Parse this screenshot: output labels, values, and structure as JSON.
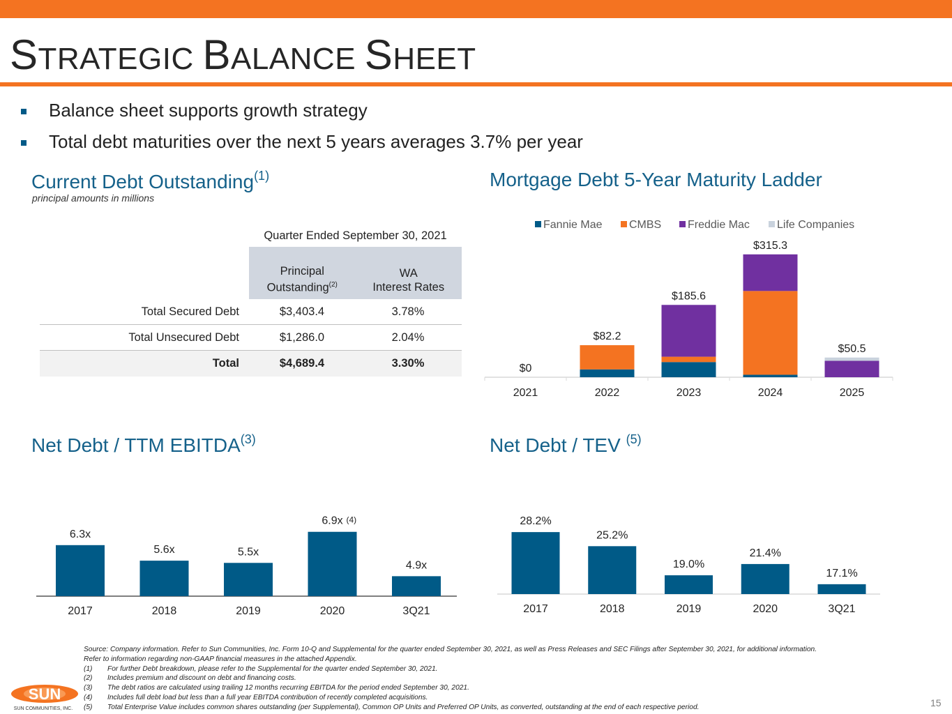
{
  "colors": {
    "orange": "#f47321",
    "navy": "#005a87",
    "purple": "#7030a0",
    "light_gray": "#c9d2dd",
    "title_blue": "#15618a"
  },
  "title": {
    "cap1": "S",
    "rest1": "TRATEGIC ",
    "cap2": "B",
    "rest2": "ALANCE ",
    "cap3": "S",
    "rest3": "HEET"
  },
  "bullets": [
    "Balance sheet supports growth strategy",
    "Total debt maturities over the next 5 years averages 3.7% per year"
  ],
  "debt_table": {
    "title": "Current Debt Outstanding",
    "title_note": "(1)",
    "subtitle": "principal amounts in millions",
    "period_header": "Quarter Ended September 30, 2021",
    "col1_line1": "Principal",
    "col1_line2": "Outstanding",
    "col1_note": "(2)",
    "col2_line1": "WA",
    "col2_line2": "Interest Rates",
    "rows": [
      {
        "label": "Total Secured Debt",
        "principal": "$3,403.4",
        "rate": "3.78%"
      },
      {
        "label": "Total Unsecured Debt",
        "principal": "$1,286.0",
        "rate": "2.04%"
      },
      {
        "label": "Total",
        "principal": "$4,689.4",
        "rate": "3.30%"
      }
    ]
  },
  "ladder_title": "Mortgage Debt 5-Year Maturity Ladder",
  "ebitda_title": "Net Debt / TTM EBITDA",
  "ebitda_title_note": "(3)",
  "tev_title": "Net Debt / TEV",
  "tev_title_note": "(5)",
  "chart_data": [
    {
      "type": "bar",
      "stacked": true,
      "title": "Mortgage Debt 5-Year Maturity Ladder",
      "categories": [
        "2021",
        "2022",
        "2023",
        "2024",
        "2025"
      ],
      "series": [
        {
          "name": "Fannie Mae",
          "color": "#005a87",
          "values": [
            0,
            20.1,
            38.9,
            6.3,
            0
          ]
        },
        {
          "name": "CMBS",
          "color": "#f47321",
          "values": [
            0,
            62.1,
            13.7,
            215.0,
            0
          ]
        },
        {
          "name": "Freddie Mac",
          "color": "#7030a0",
          "values": [
            0,
            0,
            133.0,
            94.0,
            42.2
          ]
        },
        {
          "name": "Life Companies",
          "color": "#c9d2dd",
          "values": [
            0,
            0,
            0,
            0,
            8.3
          ]
        }
      ],
      "totals": [
        "$0",
        "$82.2",
        "$185.6",
        "$315.3",
        "$50.5"
      ],
      "ylim": [
        0,
        340
      ],
      "legend_position": "top"
    },
    {
      "type": "bar",
      "title": "Net Debt / TTM EBITDA",
      "categories": [
        "2017",
        "2018",
        "2019",
        "2020",
        "3Q21"
      ],
      "values": [
        6.3,
        5.6,
        5.5,
        6.9,
        4.9
      ],
      "labels": [
        "6.3x",
        "5.6x",
        "5.5x",
        "6.9x",
        "4.9x"
      ],
      "label_notes": [
        "",
        "",
        "",
        "(4)",
        ""
      ],
      "ylim": [
        4.0,
        7.3
      ],
      "color": "#005a87"
    },
    {
      "type": "bar",
      "title": "Net Debt / TEV",
      "categories": [
        "2017",
        "2018",
        "2019",
        "2020",
        "3Q21"
      ],
      "values": [
        28.2,
        25.2,
        19.0,
        21.4,
        17.1
      ],
      "labels": [
        "28.2%",
        "25.2%",
        "19.0%",
        "21.4%",
        "17.1%"
      ],
      "ylim": [
        15.0,
        30.0
      ],
      "color": "#005a87"
    }
  ],
  "footnotes": {
    "source": "Source: Company information. Refer to Sun Communities, Inc. Form 10-Q and Supplemental for the quarter ended September 30, 2021, as well as Press Releases and SEC Filings after September 30, 2021, for additional information.",
    "non_gaap": "Refer to information regarding non-GAAP financial measures in the attached Appendix.",
    "notes": [
      {
        "num": "(1)",
        "text": "For further Debt breakdown, please refer to the Supplemental for the quarter ended September 30, 2021."
      },
      {
        "num": "(2)",
        "text": "Includes premium and discount on debt and financing costs."
      },
      {
        "num": "(3)",
        "text": "The debt ratios are calculated using trailing 12 months recurring EBITDA for the period ended September 30, 2021."
      },
      {
        "num": "(4)",
        "text": "Includes full debt load but less than a full year EBITDA contribution of recently completed acquisitions."
      },
      {
        "num": "(5)",
        "text": "Total Enterprise Value includes common shares outstanding (per Supplemental), Common OP Units and Preferred OP Units, as converted, outstanding at the end of each respective period."
      }
    ]
  },
  "logo": {
    "name": "SUN",
    "tagline": "SUN COMMUNITIES, INC."
  },
  "page_number": "15"
}
